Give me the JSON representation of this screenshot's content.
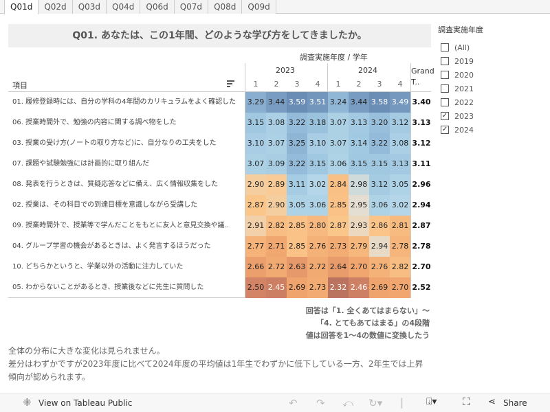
{
  "tabs": [
    "Q01d",
    "Q02d",
    "Q03d",
    "Q04d",
    "Q06d",
    "Q07d",
    "Q08d",
    "Q09d"
  ],
  "title": "Q01. あなたは、この1年間、どのような学び方をしてきましたか。",
  "table": {
    "header": "調査実施年度 / 学年",
    "item_header": "項目",
    "years": [
      "2023",
      "2024"
    ],
    "grades": [
      "1",
      "2",
      "3",
      "4",
      "1",
      "2",
      "3",
      "4"
    ],
    "grand_total_label": "Grand T..",
    "rows": [
      {
        "label": "01. 履修登録時には、自分の学科の4年間のカリキュラムをよく確認した",
        "values": [
          "3.29",
          "3.44",
          "3.59",
          "3.51",
          "3.24",
          "3.44",
          "3.58",
          "3.49"
        ],
        "total": "3.40"
      },
      {
        "label": "06. 授業時間外で、勉強の内容に関する調べ物をした",
        "values": [
          "3.15",
          "3.08",
          "3.22",
          "3.18",
          "3.07",
          "3.13",
          "3.20",
          "3.12"
        ],
        "total": "3.13"
      },
      {
        "label": "03. 授業の受け方(ノートの取り方など)に、自分なりの工夫をした",
        "values": [
          "3.10",
          "3.07",
          "3.25",
          "3.10",
          "3.07",
          "3.14",
          "3.22",
          "3.08"
        ],
        "total": "3.12"
      },
      {
        "label": "07. 課題や試験勉強には計画的に取り組んだ",
        "values": [
          "3.07",
          "3.09",
          "3.22",
          "3.15",
          "3.06",
          "3.15",
          "3.15",
          "3.13"
        ],
        "total": "3.11"
      },
      {
        "label": "08. 発表を行うときは、質疑応答などに備え、広く情報収集をした",
        "values": [
          "2.90",
          "2.89",
          "3.11",
          "3.02",
          "2.84",
          "2.98",
          "3.12",
          "3.05"
        ],
        "total": "2.96"
      },
      {
        "label": "02. 授業は、その科目での到達目標を意識しながら受講した",
        "values": [
          "2.87",
          "2.90",
          "3.05",
          "3.06",
          "2.85",
          "2.95",
          "3.06",
          "3.02"
        ],
        "total": "2.94"
      },
      {
        "label": "09. 授業時間外で、授業等で学んだことをもとに友人と意見交換や議..",
        "values": [
          "2.91",
          "2.82",
          "2.85",
          "2.80",
          "2.87",
          "2.93",
          "2.86",
          "2.81"
        ],
        "total": "2.87"
      },
      {
        "label": "04. グループ学習の機会があるときは、よく発言するほうだった",
        "values": [
          "2.77",
          "2.71",
          "2.85",
          "2.76",
          "2.73",
          "2.79",
          "2.94",
          "2.78"
        ],
        "total": "2.78"
      },
      {
        "label": "10. どちらかというと、学業以外の活動に注力していた",
        "values": [
          "2.66",
          "2.72",
          "2.63",
          "2.72",
          "2.64",
          "2.70",
          "2.76",
          "2.82"
        ],
        "total": "2.70"
      },
      {
        "label": "05. わからないことがあるとき、授業後などに先生に質問した",
        "values": [
          "2.50",
          "2.45",
          "2.69",
          "2.73",
          "2.32",
          "2.46",
          "2.69",
          "2.70"
        ],
        "total": "2.52"
      }
    ]
  },
  "filter": {
    "title": "調査実施年度",
    "items": [
      {
        "label": "(All)",
        "checked": false
      },
      {
        "label": "2019",
        "checked": false
      },
      {
        "label": "2020",
        "checked": false
      },
      {
        "label": "2021",
        "checked": false
      },
      {
        "label": "2022",
        "checked": false
      },
      {
        "label": "2023",
        "checked": true
      },
      {
        "label": "2024",
        "checked": true
      }
    ]
  },
  "note": [
    "回答は「1. 全くあてはまらない」〜",
    "「4. とてもあてはまる」の4段階",
    "値は回答を1〜4の数値に変換したう"
  ],
  "summary": [
    "全体の分布に大きな変化は見られません。",
    "差分はわずかですが2023年度に比べて2024年度の平均値は1年生でわずかに低下している一方、2年生では上昇傾向が認められます。"
  ],
  "footer": {
    "view": "View on Tableau Public",
    "share": "Share"
  }
}
